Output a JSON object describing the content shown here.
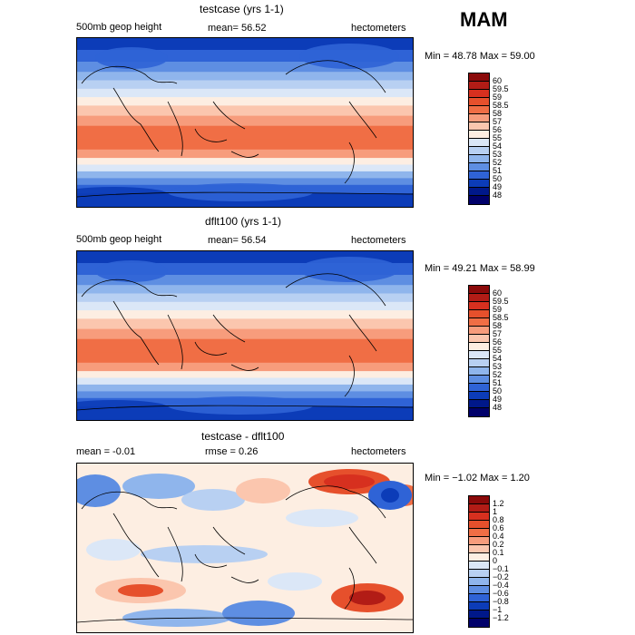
{
  "season": "MAM",
  "panels": [
    {
      "title": "testcase (yrs 1-1)",
      "left_label": "500mb geop height",
      "center_label": "mean=   56.52",
      "right_label": "hectometers",
      "stats": "Min =   48.78  Max =   59.00",
      "type": "field"
    },
    {
      "title": "dflt100 (yrs 1-1)",
      "left_label": "500mb geop height",
      "center_label": "mean=   56.54",
      "right_label": "hectometers",
      "stats": "Min =   49.21  Max =   58.99",
      "type": "field"
    },
    {
      "title": "testcase - dflt100",
      "left_label": "mean =   -0.01",
      "center_label": "rmse =    0.26",
      "right_label": "hectometers",
      "stats": "Min =  −1.02  Max =    1.20",
      "type": "diff"
    }
  ],
  "chart_data": [
    {
      "type": "heatmap",
      "title": "testcase (yrs 1-1)",
      "variable": "500mb geop height",
      "units": "hectometers",
      "mean": 56.52,
      "min": 48.78,
      "max": 59.0,
      "colorbar_labels": [
        "60",
        "59.5",
        "59",
        "58.5",
        "58",
        "57",
        "56",
        "55",
        "54",
        "53",
        "52",
        "51",
        "50",
        "49",
        "48"
      ],
      "colorbar_colors": [
        "#8b0a0a",
        "#b21c16",
        "#d7301f",
        "#e6502c",
        "#f06e45",
        "#f79c7c",
        "#fbc6ae",
        "#fdeee2",
        "#dbe7f7",
        "#b8d0f2",
        "#8fb5ec",
        "#5e8ee2",
        "#2f63d6",
        "#0c3cb8",
        "#00188a",
        "#00006a"
      ]
    },
    {
      "type": "heatmap",
      "title": "dflt100 (yrs 1-1)",
      "variable": "500mb geop height",
      "units": "hectometers",
      "mean": 56.54,
      "min": 49.21,
      "max": 58.99,
      "colorbar_labels": [
        "60",
        "59.5",
        "59",
        "58.5",
        "58",
        "57",
        "56",
        "55",
        "54",
        "53",
        "52",
        "51",
        "50",
        "49",
        "48"
      ],
      "colorbar_colors": [
        "#8b0a0a",
        "#b21c16",
        "#d7301f",
        "#e6502c",
        "#f06e45",
        "#f79c7c",
        "#fbc6ae",
        "#fdeee2",
        "#dbe7f7",
        "#b8d0f2",
        "#8fb5ec",
        "#5e8ee2",
        "#2f63d6",
        "#0c3cb8",
        "#00188a",
        "#00006a"
      ]
    },
    {
      "type": "heatmap",
      "title": "testcase - dflt100",
      "units": "hectometers",
      "mean": -0.01,
      "rmse": 0.26,
      "min": -1.02,
      "max": 1.2,
      "colorbar_labels": [
        "1.2",
        "1",
        "0.8",
        "0.6",
        "0.4",
        "0.2",
        "0.1",
        "0",
        "−0.1",
        "−0.2",
        "−0.4",
        "−0.6",
        "−0.8",
        "−1",
        "−1.2"
      ],
      "colorbar_colors": [
        "#8b0a0a",
        "#b21c16",
        "#d7301f",
        "#e6502c",
        "#f06e45",
        "#f79c7c",
        "#fbc6ae",
        "#fdeee2",
        "#dbe7f7",
        "#b8d0f2",
        "#8fb5ec",
        "#5e8ee2",
        "#2f63d6",
        "#0c3cb8",
        "#00188a",
        "#00006a"
      ]
    }
  ]
}
